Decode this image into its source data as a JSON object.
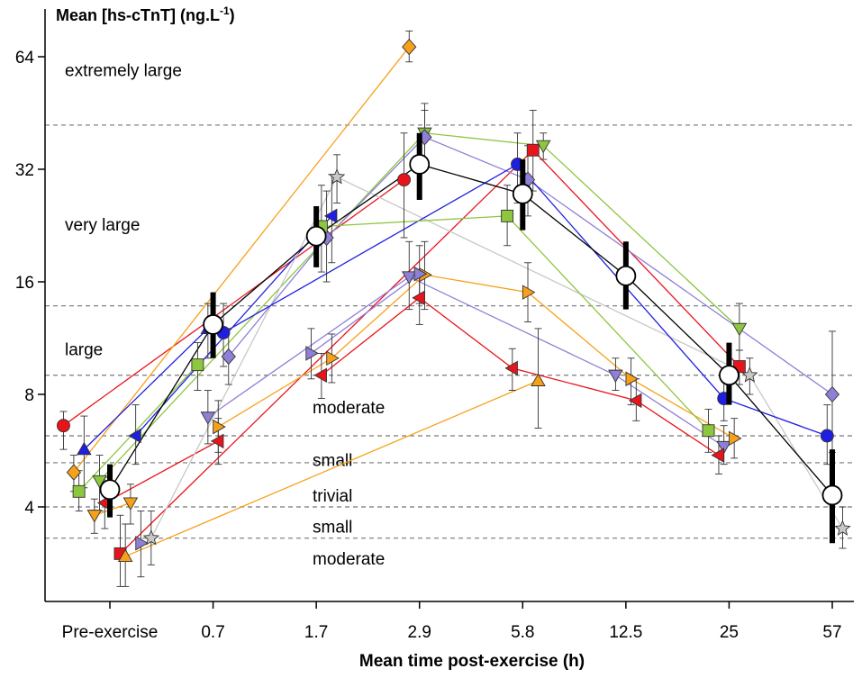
{
  "chart_data": {
    "type": "scatter",
    "title": "",
    "ylabel_main": "Mean [hs-cTnT] (ng.L",
    "ylabel_sup": "-1",
    "ylabel_end": ")",
    "xlabel": "Mean time post-exercise (h)",
    "y_scale": "log2",
    "ylim": [
      2.6,
      100
    ],
    "y_ticks": [
      {
        "value": 4,
        "label": "4"
      },
      {
        "value": 8,
        "label": "8"
      },
      {
        "value": 16,
        "label": "16"
      },
      {
        "value": 32,
        "label": "32"
      },
      {
        "value": 64,
        "label": "64"
      }
    ],
    "categories": [
      "Pre-exercise",
      "0.7",
      "1.7",
      "2.9",
      "5.8",
      "12.5",
      "25",
      "57"
    ],
    "thresholds": [
      3.3,
      4.0,
      5.25,
      6.2,
      9.0,
      13.8,
      42.0
    ],
    "bands": [
      {
        "label": "extremely large",
        "y": 59.0
      },
      {
        "label": "very large",
        "y": 22.8
      },
      {
        "label": "large",
        "y": 10.6
      },
      {
        "label": "moderate",
        "y": 7.4
      },
      {
        "label": "small",
        "y": 5.35
      },
      {
        "label": "trivial",
        "y": 4.3
      },
      {
        "label": "small",
        "y": 3.55
      },
      {
        "label": "moderate",
        "y": 2.92
      }
    ],
    "mean_series": {
      "name": "Mean",
      "points": [
        {
          "x": 0,
          "y": 4.45,
          "lo": 3.75,
          "hi": 5.2
        },
        {
          "x": 1,
          "y": 12.3,
          "lo": 10.0,
          "hi": 15.0
        },
        {
          "x": 2,
          "y": 21.2,
          "lo": 17.5,
          "hi": 25.5
        },
        {
          "x": 3,
          "y": 33.0,
          "lo": 26.5,
          "hi": 40.0
        },
        {
          "x": 4,
          "y": 27.5,
          "lo": 22.0,
          "hi": 34.0
        },
        {
          "x": 5,
          "y": 16.6,
          "lo": 13.5,
          "hi": 20.5
        },
        {
          "x": 6,
          "y": 9.0,
          "lo": 7.5,
          "hi": 11.0
        },
        {
          "x": 7,
          "y": 4.3,
          "lo": 3.2,
          "hi": 5.7
        }
      ]
    },
    "series": [
      {
        "name": "study-red-circle",
        "marker": "circle",
        "color": "#e8141c",
        "points": [
          {
            "x": -0.45,
            "y": 6.6,
            "lo": 5.7,
            "hi": 7.2
          },
          {
            "x": 2.85,
            "y": 30.0,
            "lo": 21.0,
            "hi": 40.0
          }
        ]
      },
      {
        "name": "study-orange-diamond",
        "marker": "diamond",
        "color": "#f7a11a",
        "points": [
          {
            "x": -0.35,
            "y": 4.95,
            "lo": 4.4,
            "hi": 5.5
          },
          {
            "x": 2.9,
            "y": 68.0,
            "lo": 62.0,
            "hi": 75.0
          }
        ]
      },
      {
        "name": "study-blue-tri-up",
        "marker": "triangle-up",
        "color": "#1f1fe0",
        "points": [
          {
            "x": -0.25,
            "y": 5.7,
            "lo": 4.5,
            "hi": 7.0
          },
          {
            "x": 0.95,
            "y": 12.0,
            "lo": 10.0,
            "hi": 14.0
          }
        ]
      },
      {
        "name": "study-green-square-a",
        "marker": "square",
        "color": "#8dc63f",
        "points": [
          {
            "x": -0.3,
            "y": 4.4,
            "lo": 3.9,
            "hi": 5.0
          },
          {
            "x": 0.85,
            "y": 9.6,
            "lo": 8.2,
            "hi": 11.0
          }
        ]
      },
      {
        "name": "study-green-tri-down",
        "marker": "triangle-down",
        "color": "#8dc63f",
        "points": [
          {
            "x": -0.1,
            "y": 4.7,
            "lo": 3.9,
            "hi": 5.5
          },
          {
            "x": 3.05,
            "y": 40.0,
            "lo": 34.0,
            "hi": 46.0
          },
          {
            "x": 4.2,
            "y": 37.0,
            "lo": 34.0,
            "hi": 40.0
          },
          {
            "x": 6.1,
            "y": 12.0,
            "lo": 10.5,
            "hi": 14.0
          }
        ]
      },
      {
        "name": "study-orange-tri-down",
        "marker": "triangle-down",
        "color": "#f7a11a",
        "points": [
          {
            "x": -0.15,
            "y": 3.8,
            "lo": 3.4,
            "hi": 4.2
          },
          {
            "x": 0.2,
            "y": 4.1,
            "lo": 3.6,
            "hi": 4.6
          }
        ]
      },
      {
        "name": "study-red-tri-left-a",
        "marker": "triangle-left",
        "color": "#e8141c",
        "points": [
          {
            "x": -0.05,
            "y": 4.1,
            "lo": 3.5,
            "hi": 4.8
          },
          {
            "x": 1.05,
            "y": 6.0,
            "lo": 5.2,
            "hi": 6.9
          }
        ]
      },
      {
        "name": "study-blue-tri-left",
        "marker": "triangle-left",
        "color": "#1f1fe0",
        "points": [
          {
            "x": 0.25,
            "y": 6.2,
            "lo": 5.2,
            "hi": 7.5
          },
          {
            "x": 2.15,
            "y": 24.0,
            "lo": 18.0,
            "hi": 31.0
          }
        ]
      },
      {
        "name": "study-red-square",
        "marker": "square",
        "color": "#e8141c",
        "points": [
          {
            "x": 0.1,
            "y": 3.0,
            "lo": 2.45,
            "hi": 3.8
          },
          {
            "x": 4.1,
            "y": 36.0,
            "lo": 28.0,
            "hi": 46.0
          },
          {
            "x": 6.1,
            "y": 9.5,
            "lo": 8.5,
            "hi": 10.5
          }
        ]
      },
      {
        "name": "study-orange-tri-up",
        "marker": "triangle-up",
        "color": "#f7a11a",
        "points": [
          {
            "x": 0.15,
            "y": 2.95,
            "lo": 2.45,
            "hi": 3.6
          },
          {
            "x": 4.15,
            "y": 8.7,
            "lo": 6.5,
            "hi": 12.0
          }
        ]
      },
      {
        "name": "study-purple-tri-right",
        "marker": "triangle-right",
        "color": "#8f7fd6",
        "points": [
          {
            "x": 0.3,
            "y": 3.2,
            "lo": 2.6,
            "hi": 3.9
          }
        ]
      },
      {
        "name": "study-grey-star",
        "marker": "star",
        "color": "#c8c8c8",
        "points": [
          {
            "x": 0.4,
            "y": 3.3,
            "lo": 2.8,
            "hi": 3.9
          },
          {
            "x": 2.2,
            "y": 30.5,
            "lo": 26.0,
            "hi": 35.0
          },
          {
            "x": 6.2,
            "y": 9.0,
            "lo": 8.0,
            "hi": 10.0
          },
          {
            "x": 7.1,
            "y": 3.5,
            "lo": 3.1,
            "hi": 4.0
          }
        ]
      },
      {
        "name": "study-purple-tri-down",
        "marker": "triangle-down",
        "color": "#8f7fd6",
        "points": [
          {
            "x": 0.95,
            "y": 6.95,
            "lo": 5.9,
            "hi": 8.2
          },
          {
            "x": 2.9,
            "y": 16.5,
            "lo": 13.5,
            "hi": 20.5
          },
          {
            "x": 4.9,
            "y": 9.0,
            "lo": 8.2,
            "hi": 10.0
          },
          {
            "x": 5.95,
            "y": 5.8,
            "lo": 5.2,
            "hi": 6.6
          }
        ]
      },
      {
        "name": "study-orange-tri-right",
        "marker": "triangle-right",
        "color": "#f7a11a",
        "points": [
          {
            "x": 1.05,
            "y": 6.55,
            "lo": 5.6,
            "hi": 7.7
          },
          {
            "x": 2.15,
            "y": 10.0,
            "lo": 8.6,
            "hi": 11.6
          },
          {
            "x": 3.05,
            "y": 16.7,
            "lo": 13.5,
            "hi": 20.5
          },
          {
            "x": 4.05,
            "y": 15.0,
            "lo": 12.5,
            "hi": 18.0
          },
          {
            "x": 5.05,
            "y": 8.8,
            "lo": 7.5,
            "hi": 10.0
          },
          {
            "x": 6.05,
            "y": 6.1,
            "lo": 5.4,
            "hi": 6.9
          }
        ]
      },
      {
        "name": "study-purple-diamond",
        "marker": "diamond",
        "color": "#8f7fd6",
        "points": [
          {
            "x": 1.15,
            "y": 10.1,
            "lo": 8.5,
            "hi": 12.0
          },
          {
            "x": 2.1,
            "y": 21.0,
            "lo": 16.0,
            "hi": 28.0
          },
          {
            "x": 3.05,
            "y": 39.0,
            "lo": 32.0,
            "hi": 48.0
          },
          {
            "x": 4.05,
            "y": 30.0,
            "lo": 24.0,
            "hi": 37.0
          },
          {
            "x": 7.0,
            "y": 8.0,
            "lo": 5.6,
            "hi": 11.8
          }
        ]
      },
      {
        "name": "study-blue-circle",
        "marker": "circle",
        "color": "#1f1fe0",
        "points": [
          {
            "x": 1.1,
            "y": 11.7,
            "lo": 9.5,
            "hi": 14.0
          },
          {
            "x": 3.95,
            "y": 33.0,
            "lo": 26.0,
            "hi": 40.0
          },
          {
            "x": 5.95,
            "y": 7.8,
            "lo": 6.8,
            "hi": 9.0
          },
          {
            "x": 6.95,
            "y": 6.2,
            "lo": 5.2,
            "hi": 7.5
          }
        ]
      },
      {
        "name": "study-green-square-b",
        "marker": "square",
        "color": "#8dc63f",
        "points": [
          {
            "x": 2.05,
            "y": 22.5,
            "lo": 17.0,
            "hi": 29.0
          },
          {
            "x": 3.85,
            "y": 24.0,
            "lo": 20.0,
            "hi": 29.0
          },
          {
            "x": 5.8,
            "y": 6.4,
            "lo": 5.6,
            "hi": 7.3
          }
        ]
      },
      {
        "name": "study-purple-tri-right-b",
        "marker": "triangle-right",
        "color": "#8f7fd6",
        "points": [
          {
            "x": 1.95,
            "y": 10.3,
            "lo": 8.8,
            "hi": 12.0
          },
          {
            "x": 3.0,
            "y": 16.8,
            "lo": 14.0,
            "hi": 20.0
          }
        ]
      },
      {
        "name": "study-red-tri-left-b",
        "marker": "triangle-left",
        "color": "#e8141c",
        "points": [
          {
            "x": 2.05,
            "y": 9.0,
            "lo": 7.8,
            "hi": 10.3
          },
          {
            "x": 3.0,
            "y": 14.5,
            "lo": 12.3,
            "hi": 17.0
          },
          {
            "x": 3.9,
            "y": 9.4,
            "lo": 8.2,
            "hi": 10.6
          },
          {
            "x": 5.1,
            "y": 7.7,
            "lo": 6.8,
            "hi": 8.8
          },
          {
            "x": 5.9,
            "y": 5.5,
            "lo": 4.9,
            "hi": 6.2
          }
        ]
      }
    ]
  }
}
